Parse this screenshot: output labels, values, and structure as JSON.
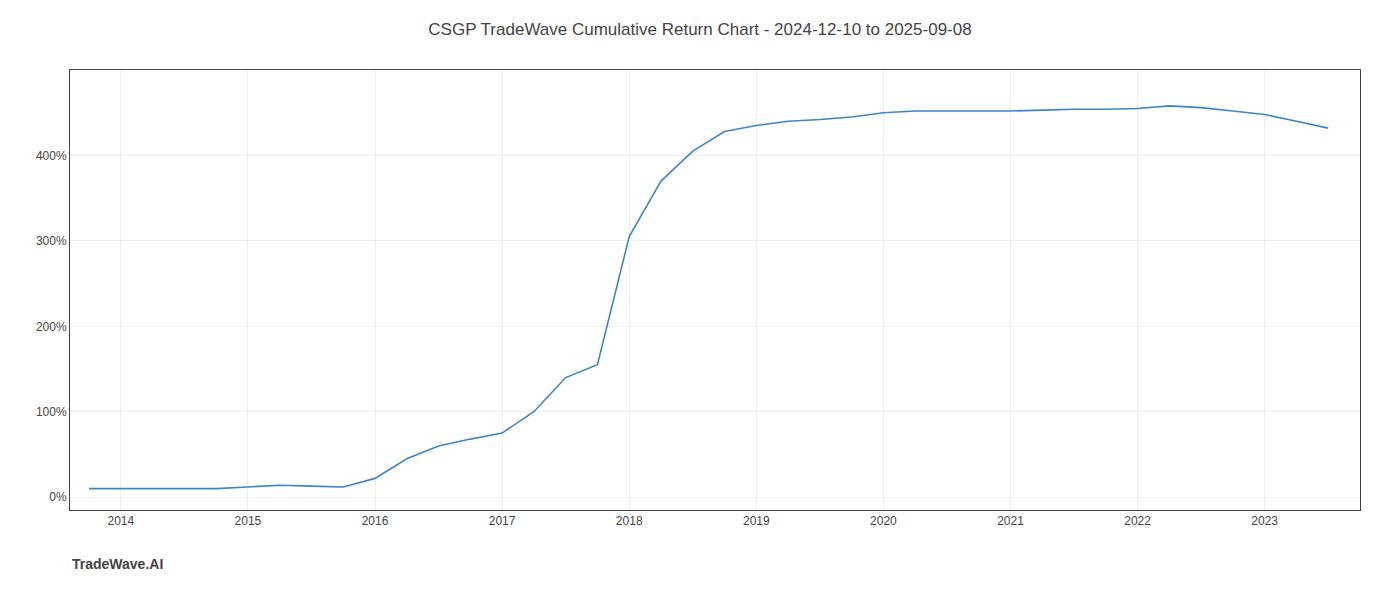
{
  "chart_data": {
    "type": "line",
    "title": "CSGP TradeWave Cumulative Return Chart - 2024-12-10 to 2025-09-08",
    "annotations": [
      "TradeWave.AI"
    ],
    "color": "#3d85c8",
    "grid": true,
    "x": [
      2013.75,
      2014.0,
      2014.25,
      2014.5,
      2014.75,
      2015.0,
      2015.25,
      2015.5,
      2015.75,
      2016.0,
      2016.25,
      2016.5,
      2016.75,
      2017.0,
      2017.25,
      2017.5,
      2017.75,
      2018.0,
      2018.25,
      2018.5,
      2018.75,
      2019.0,
      2019.25,
      2019.5,
      2019.75,
      2020.0,
      2020.25,
      2020.5,
      2020.75,
      2021.0,
      2021.25,
      2021.5,
      2021.75,
      2022.0,
      2022.25,
      2022.5,
      2022.75,
      2023.0,
      2023.25,
      2023.5
    ],
    "values": [
      10,
      10,
      10,
      10,
      10,
      12,
      14,
      13,
      12,
      22,
      45,
      60,
      68,
      75,
      100,
      140,
      155,
      305,
      370,
      405,
      428,
      435,
      440,
      442,
      445,
      450,
      452,
      452,
      452,
      452,
      453,
      454,
      454,
      455,
      458,
      456,
      452,
      448,
      440,
      432
    ],
    "xlim": [
      2013.6,
      2023.75
    ],
    "xticks": [
      2014,
      2015,
      2016,
      2017,
      2018,
      2019,
      2020,
      2021,
      2022,
      2023
    ],
    "ylim": [
      -15,
      500
    ],
    "yticks": [
      {
        "value": 0,
        "label": "0%"
      },
      {
        "value": 100,
        "label": "100%"
      },
      {
        "value": 200,
        "label": "200%"
      },
      {
        "value": 300,
        "label": "300%"
      },
      {
        "value": 400,
        "label": "400%"
      }
    ]
  }
}
